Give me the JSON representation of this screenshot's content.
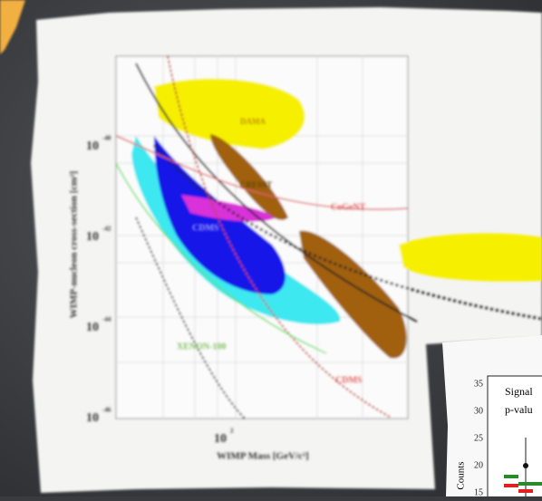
{
  "left_plot": {
    "y_axis_label": "WIMP-nucleon cross-section [cm²]",
    "x_axis_label": "WIMP Mass [GeV/c²]",
    "y_ticks": [
      {
        "base": "10",
        "exp": "-40"
      },
      {
        "base": "10",
        "exp": "-42"
      },
      {
        "base": "10",
        "exp": "-44"
      },
      {
        "base": "10",
        "exp": "-46"
      }
    ],
    "x_ticks": [
      {
        "base": "10",
        "exp": "2"
      }
    ],
    "region_labels": [
      "DAMA",
      "CRESST",
      "CoGeNT",
      "CDMS",
      "XENON-100",
      "CDMS"
    ]
  },
  "right_plot": {
    "y_axis_label": "Counts",
    "y_ticks": [
      "35",
      "30",
      "25",
      "20",
      "15"
    ],
    "legend_lines": [
      "Signal",
      "p-valu"
    ]
  }
}
